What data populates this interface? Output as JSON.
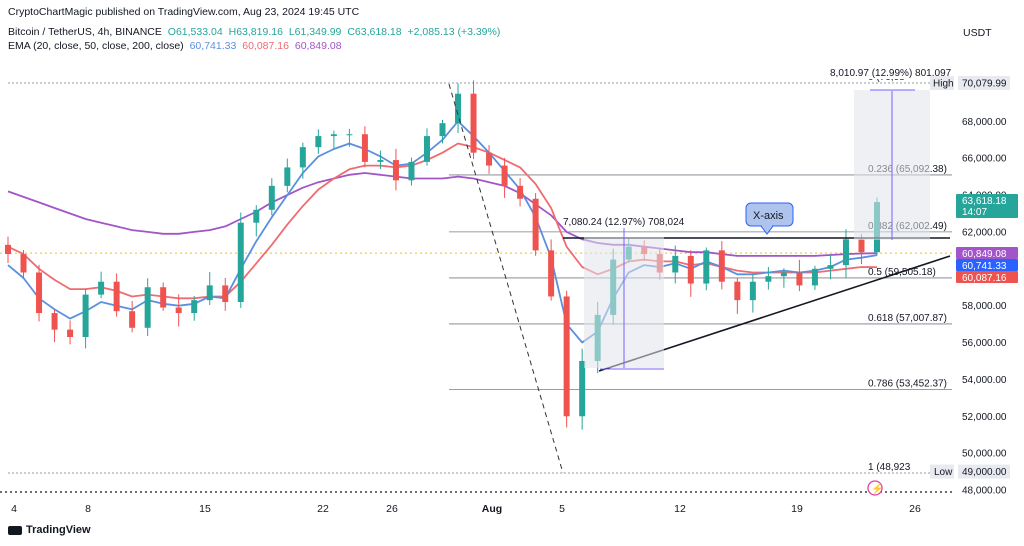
{
  "publisher_line": "CryptoChartMagic published on TradingView.com, Aug 23, 2024 19:45 UTC",
  "symbol_line": "Bitcoin / TetherUS, 4h, BINANCE",
  "ohlc": {
    "o": "O61,533.04",
    "h": "H63,819.16",
    "l": "L61,349.99",
    "c": "C63,618.18",
    "chg": "+2,085.13 (+3.39%)"
  },
  "ema_line": {
    "label": "EMA (20, close, 50, close, 200, close)",
    "v1": "60,741.33",
    "v2": "60,087.16",
    "v3": "60,849.08"
  },
  "currency": "USDT",
  "branding": "TradingView",
  "colors": {
    "up": "#26a69a",
    "down": "#ef5350",
    "ema20": "#5b8fe0",
    "ema50": "#f06b72",
    "ema200": "#a255c8",
    "measure": "#7b61ff"
  },
  "price_axis": [
    "70,079.99",
    "68,000.00",
    "66,000.00",
    "64,000.00",
    "62,000.00",
    "60,000.00",
    "58,000.00",
    "56,000.00",
    "54,000.00",
    "52,000.00",
    "50,000.00",
    "49,000.00",
    "48,000.00"
  ],
  "price_badges": {
    "current": "63,618.18",
    "countdown": "14:07",
    "ema200": "60,849.08",
    "ema20": "60,741.33",
    "ema50": "60,087.16",
    "high_tag": "High",
    "low_tag": "Low"
  },
  "time_axis": [
    "4",
    "8",
    "15",
    "22",
    "26",
    "Aug",
    "5",
    "12",
    "19",
    "26"
  ],
  "fib_labels": [
    "0 (70,08",
    "0.236 (65,092.38)",
    "0.382 (62,002.49)",
    "0.5 (59,505.18)",
    "0.618 (57,007.87)",
    "0.786 (53,452.37)",
    "1 (48,923"
  ],
  "measure_top": "8,010.97 (12.99%) 801,097",
  "measure_mid": "7,080.24 (12.97%) 708,024",
  "callout": "X-axis",
  "chart_data": {
    "type": "candlestick",
    "symbol": "Bitcoin / TetherUS",
    "interval": "4h",
    "ylim": [
      47800,
      71200
    ],
    "x_ticks": [
      "4",
      "8",
      "15",
      "22",
      "26",
      "Aug",
      "5",
      "12",
      "19",
      "26"
    ],
    "x": [
      0,
      4,
      8,
      12,
      16,
      20,
      24,
      28,
      32,
      36,
      40,
      44,
      48,
      52,
      56,
      60,
      64,
      68,
      72,
      76,
      80,
      84,
      88,
      92,
      96,
      100,
      104,
      108,
      112,
      116,
      120,
      124,
      128,
      132,
      136,
      140,
      144,
      148,
      152,
      156,
      160,
      164,
      168,
      172,
      176,
      180,
      184,
      188,
      192,
      196,
      200,
      204,
      208,
      212,
      216,
      220,
      224
    ],
    "close": [
      60800,
      59800,
      57600,
      56700,
      56300,
      58600,
      59300,
      57700,
      56800,
      59000,
      57900,
      57600,
      58300,
      59100,
      58200,
      62500,
      63200,
      64500,
      65500,
      66600,
      67200,
      67300,
      67300,
      65800,
      65900,
      64800,
      65800,
      67200,
      67900,
      69500,
      66300,
      65600,
      64500,
      63800,
      61000,
      58500,
      52000,
      55000,
      57500,
      60500,
      61200,
      60800,
      59800,
      60700,
      59200,
      61000,
      59300,
      58300,
      59300,
      59600,
      59800,
      59100,
      60000,
      60200,
      61600,
      60900,
      63618
    ],
    "ema20": [
      60200,
      59500,
      58400,
      57800,
      57300,
      57700,
      58200,
      58000,
      57800,
      58300,
      58100,
      58000,
      58100,
      58500,
      58400,
      60000,
      61500,
      62800,
      64000,
      65200,
      66100,
      66500,
      66800,
      66500,
      66100,
      65600,
      65700,
      66300,
      67000,
      68000,
      67200,
      66300,
      65300,
      64300,
      62800,
      60600,
      57000,
      56000,
      56600,
      58400,
      59800,
      60200,
      60100,
      60300,
      60000,
      60400,
      60100,
      59700,
      59700,
      59800,
      59900,
      59800,
      59900,
      60100,
      60500,
      60600,
      60741
    ],
    "ema50": [
      61200,
      60800,
      60000,
      59400,
      58900,
      58900,
      59000,
      58800,
      58500,
      58600,
      58500,
      58400,
      58400,
      58500,
      58500,
      59300,
      60300,
      61300,
      62400,
      63400,
      64300,
      64900,
      65400,
      65600,
      65600,
      65500,
      65600,
      65900,
      66300,
      66800,
      66600,
      66300,
      65900,
      65500,
      64600,
      63300,
      61200,
      60100,
      59700,
      60000,
      60400,
      60500,
      60400,
      60400,
      60200,
      60300,
      60100,
      59900,
      59800,
      59800,
      59800,
      59800,
      59800,
      59900,
      60000,
      60100,
      60087
    ],
    "ema200": [
      64200,
      63900,
      63600,
      63300,
      63000,
      62700,
      62500,
      62300,
      62100,
      62000,
      61900,
      61900,
      62000,
      62100,
      62300,
      62700,
      63100,
      63600,
      64000,
      64400,
      64700,
      64900,
      65100,
      65200,
      65100,
      65000,
      64900,
      64900,
      64900,
      65000,
      64900,
      64700,
      64500,
      64100,
      63500,
      62900,
      62000,
      61600,
      61400,
      61300,
      61300,
      61200,
      61100,
      61000,
      60900,
      60900,
      60800,
      60700,
      60700,
      60700,
      60700,
      60700,
      60700,
      60750,
      60800,
      60830,
      60849
    ],
    "fib_levels": [
      {
        "ratio": "0",
        "price": 70079.99
      },
      {
        "ratio": "0.236",
        "price": 65092.38
      },
      {
        "ratio": "0.382",
        "price": 62002.49
      },
      {
        "ratio": "0.5",
        "price": 59505.18
      },
      {
        "ratio": "0.618",
        "price": 57007.87
      },
      {
        "ratio": "0.786",
        "price": 53452.37
      },
      {
        "ratio": "1",
        "price": 48923
      }
    ],
    "series": [
      {
        "name": "EMA 20",
        "last": 60741.33
      },
      {
        "name": "EMA 50",
        "last": 60087.16
      },
      {
        "name": "EMA 200",
        "last": 60849.08
      }
    ]
  }
}
